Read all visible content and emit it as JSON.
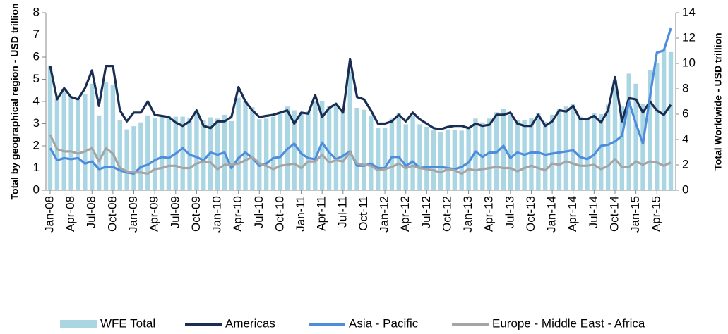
{
  "chart_data": {
    "type": "bar_line",
    "y_label": "Total by geographical region - USD trillion",
    "y2_label": "Total Worldwide - USD trillion",
    "categories": [
      "Jan-08",
      null,
      null,
      "Apr-08",
      null,
      null,
      "Jul-08",
      null,
      null,
      "Oct-08",
      null,
      null,
      "Jan-09",
      null,
      null,
      "Apr-09",
      null,
      null,
      "Jul-09",
      null,
      null,
      "Oct-09",
      null,
      null,
      "Jan-10",
      null,
      null,
      "Apr-10",
      null,
      null,
      "Jul-10",
      null,
      null,
      "Oct-10",
      null,
      null,
      "Jan-11",
      null,
      null,
      "Apr-11",
      null,
      null,
      "Jul-11",
      null,
      null,
      "Oct-11",
      null,
      null,
      "Jan-12",
      null,
      null,
      "Apr-12",
      null,
      null,
      "Jul-12",
      null,
      null,
      "Oct-12",
      null,
      null,
      "Jan-13",
      null,
      null,
      "Apr-13",
      null,
      null,
      "Jul-13",
      null,
      null,
      "Oct-13",
      null,
      null,
      "Jan-14",
      null,
      null,
      "Apr-14",
      null,
      null,
      "Jul-14",
      null,
      null,
      "Oct-14",
      null,
      null,
      "Jan-15",
      null,
      null,
      "Apr-15",
      null,
      null
    ],
    "ylim": [
      0,
      8
    ],
    "yticks": [
      0,
      1,
      2,
      3,
      4,
      5,
      6,
      7,
      8
    ],
    "y2lim": [
      0,
      14
    ],
    "y2ticks": [
      0,
      2,
      4,
      6,
      8,
      10,
      12,
      14
    ],
    "legend": "bottom",
    "series": [
      {
        "name": "WFE Total",
        "kind": "bar",
        "axis": "y2",
        "color": "#aad6e4",
        "values": [
          9.8,
          7.3,
          7.8,
          7.4,
          7.2,
          7.6,
          8.4,
          5.9,
          8.5,
          8.3,
          5.5,
          4.8,
          5.05,
          5.35,
          5.9,
          5.7,
          5.85,
          5.85,
          5.8,
          5.8,
          5.7,
          6.3,
          5.55,
          5.75,
          5.65,
          5.95,
          5.45,
          7.3,
          7.05,
          6.55,
          5.6,
          5.65,
          5.8,
          6.1,
          6.6,
          6.3,
          6.15,
          6.2,
          7.0,
          7.05,
          6.65,
          6.65,
          6.35,
          9.35,
          6.5,
          6.35,
          5.9,
          4.9,
          4.95,
          5.65,
          6.1,
          5.2,
          5.9,
          5.2,
          5.0,
          4.75,
          4.6,
          4.8,
          4.75,
          4.7,
          5.0,
          5.65,
          5.35,
          5.65,
          6.15,
          6.4,
          5.95,
          5.55,
          5.5,
          5.7,
          6.1,
          5.4,
          5.95,
          6.45,
          6.6,
          6.8,
          5.8,
          5.7,
          6.1,
          6.0,
          6.75,
          8.7,
          6.6,
          9.2,
          8.4,
          6.8,
          9.5,
          10.0,
          11.1,
          10.9
        ]
      },
      {
        "name": "Americas",
        "kind": "line",
        "color": "#1a2d52",
        "values": [
          5.6,
          4.1,
          4.6,
          4.2,
          4.1,
          4.6,
          5.4,
          3.8,
          5.6,
          5.6,
          3.6,
          3.1,
          3.5,
          3.5,
          4.0,
          3.4,
          3.35,
          3.3,
          3.05,
          2.9,
          3.1,
          3.6,
          2.9,
          2.8,
          3.1,
          3.1,
          3.3,
          4.65,
          4.0,
          3.6,
          3.3,
          3.35,
          3.4,
          3.5,
          3.6,
          3.0,
          3.5,
          3.45,
          4.3,
          3.3,
          3.7,
          3.9,
          3.5,
          5.9,
          4.2,
          4.1,
          3.6,
          3.0,
          3.0,
          3.1,
          3.4,
          3.1,
          3.5,
          3.2,
          3.0,
          2.8,
          2.75,
          2.85,
          2.9,
          2.9,
          2.8,
          3.0,
          2.9,
          2.95,
          3.4,
          3.4,
          3.5,
          3.0,
          2.9,
          2.9,
          3.4,
          2.9,
          3.1,
          3.6,
          3.55,
          3.8,
          3.2,
          3.2,
          3.35,
          3.05,
          3.6,
          5.1,
          3.1,
          4.15,
          4.1,
          3.5,
          4.0,
          3.6,
          3.4,
          3.85
        ]
      },
      {
        "name": "Asia - Pacific",
        "kind": "line",
        "color": "#4d8ddb",
        "values": [
          1.9,
          1.35,
          1.45,
          1.4,
          1.45,
          1.2,
          1.3,
          0.95,
          1.05,
          1.05,
          0.9,
          0.8,
          0.75,
          1.05,
          1.15,
          1.35,
          1.5,
          1.45,
          1.65,
          1.9,
          1.6,
          1.5,
          1.35,
          1.7,
          1.6,
          1.7,
          1.0,
          1.45,
          1.7,
          1.45,
          1.1,
          1.2,
          1.45,
          1.5,
          1.85,
          2.1,
          1.65,
          1.45,
          1.4,
          2.15,
          1.7,
          1.4,
          1.55,
          1.75,
          1.1,
          1.1,
          1.2,
          1.0,
          1.0,
          1.5,
          1.5,
          1.1,
          1.3,
          1.0,
          1.05,
          1.05,
          1.05,
          1.0,
          0.95,
          1.05,
          1.25,
          1.75,
          1.5,
          1.7,
          1.7,
          2.0,
          1.45,
          1.7,
          1.6,
          1.7,
          1.7,
          1.6,
          1.65,
          1.7,
          1.75,
          1.8,
          1.5,
          1.4,
          1.6,
          2.0,
          2.05,
          2.2,
          2.45,
          4.0,
          3.0,
          2.1,
          4.2,
          6.2,
          6.3,
          7.3
        ]
      },
      {
        "name": "Europe - Middle East - Africa",
        "kind": "line",
        "color": "#a5a5a5",
        "values": [
          2.5,
          1.85,
          1.75,
          1.75,
          1.65,
          1.75,
          1.9,
          1.3,
          1.9,
          1.65,
          1.0,
          0.85,
          0.8,
          0.8,
          0.75,
          0.95,
          1.0,
          1.1,
          1.1,
          1.0,
          1.0,
          1.2,
          1.3,
          1.25,
          0.95,
          1.15,
          1.15,
          1.2,
          1.35,
          1.5,
          1.2,
          1.1,
          0.95,
          1.1,
          1.15,
          1.2,
          1.0,
          1.3,
          1.3,
          1.6,
          1.25,
          1.35,
          1.3,
          1.7,
          1.2,
          1.15,
          1.1,
          0.9,
          0.95,
          1.05,
          1.2,
          1.0,
          1.1,
          1.0,
          0.95,
          0.9,
          0.8,
          0.95,
          0.9,
          0.75,
          0.95,
          0.9,
          0.95,
          1.0,
          1.05,
          1.0,
          1.0,
          0.85,
          1.0,
          1.1,
          1.0,
          0.9,
          1.2,
          1.15,
          1.3,
          1.2,
          1.1,
          1.1,
          1.15,
          0.95,
          1.1,
          1.4,
          1.05,
          1.05,
          1.3,
          1.15,
          1.3,
          1.25,
          1.1,
          1.25
        ]
      }
    ]
  }
}
